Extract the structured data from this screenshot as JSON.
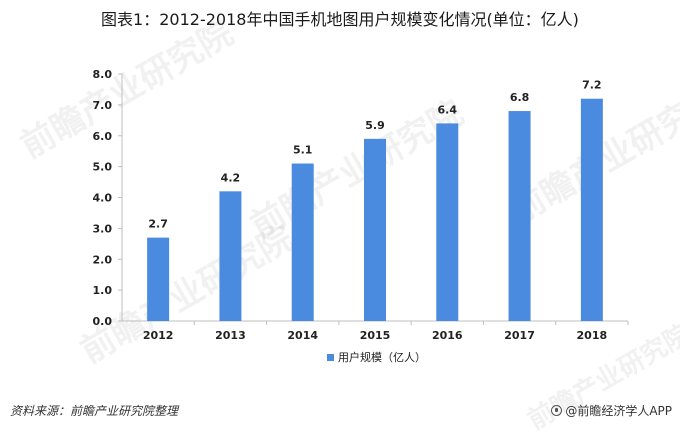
{
  "title": "图表1：2012-2018年中国手机地图用户规模变化情况(单位：亿人)",
  "source_note": "资料来源：前瞻产业研究院整理",
  "brand": "@前瞻经济学人APP",
  "watermark_text": "前瞻产业研究院",
  "colors": {
    "bar": "#4a8be0",
    "axis": "#bfbfbf",
    "text": "#222222"
  },
  "chart_data": {
    "type": "bar",
    "title": "图表1：2012-2018年中国手机地图用户规模变化情况(单位：亿人)",
    "xlabel": "",
    "ylabel": "",
    "categories": [
      "2012",
      "2013",
      "2014",
      "2015",
      "2016",
      "2017",
      "2018"
    ],
    "series": [
      {
        "name": "用户规模（亿人）",
        "values": [
          2.7,
          4.2,
          5.1,
          5.9,
          6.4,
          6.8,
          7.2
        ]
      }
    ],
    "value_labels": [
      "2.7",
      "4.2",
      "5.1",
      "5.9",
      "6.4",
      "6.8",
      "7.2"
    ],
    "ylim": [
      0,
      8
    ],
    "yticks": [
      "0.0",
      "1.0",
      "2.0",
      "3.0",
      "4.0",
      "5.0",
      "6.0",
      "7.0",
      "8.0"
    ],
    "grid": false,
    "legend_position": "bottom-center"
  }
}
